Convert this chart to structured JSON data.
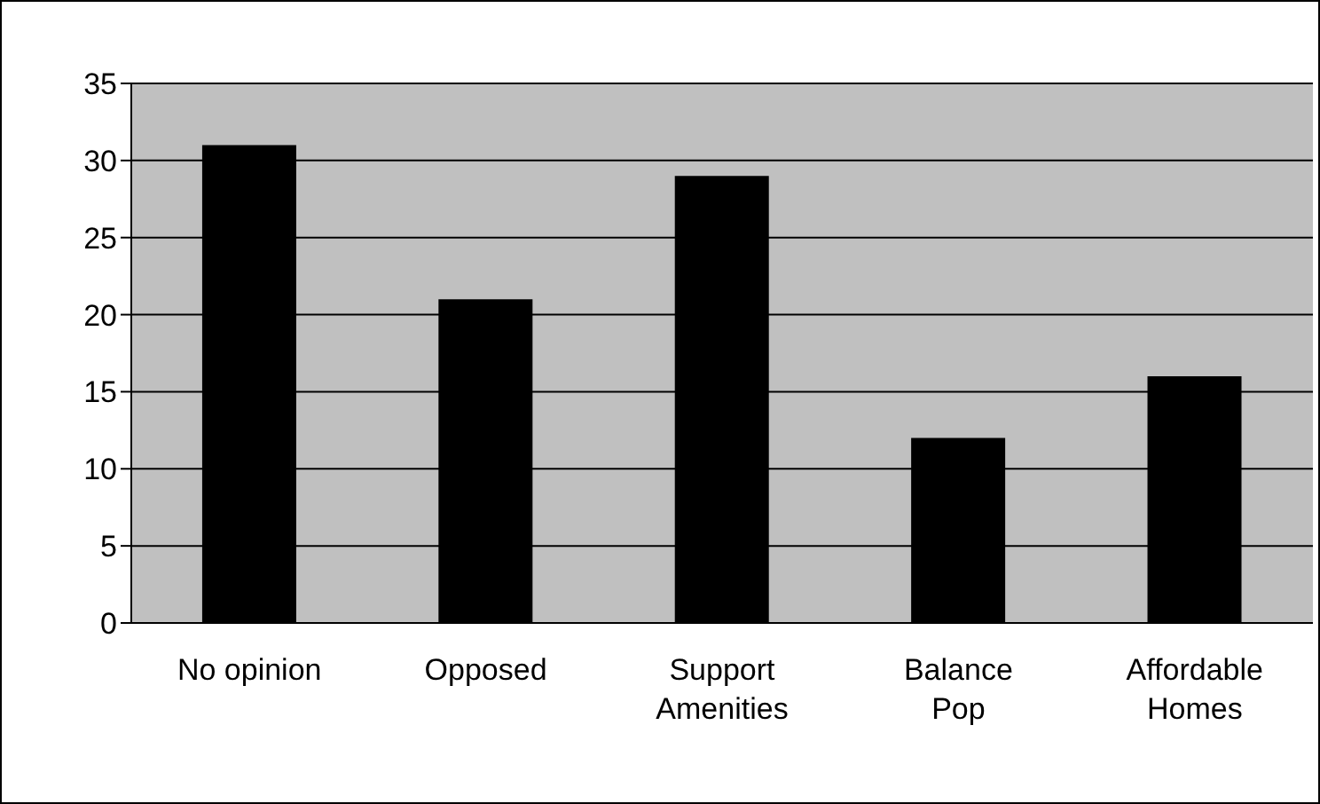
{
  "chart_data": {
    "type": "bar",
    "categories": [
      "No opinion",
      "Opposed",
      "Support Amenities",
      "Balance Pop",
      "Affordable Homes"
    ],
    "values": [
      31,
      21,
      29,
      12,
      16
    ],
    "color": "#000000",
    "ylim": [
      0,
      35
    ],
    "yticks": [
      0,
      5,
      10,
      15,
      20,
      25,
      30,
      35
    ],
    "grid": "y"
  }
}
